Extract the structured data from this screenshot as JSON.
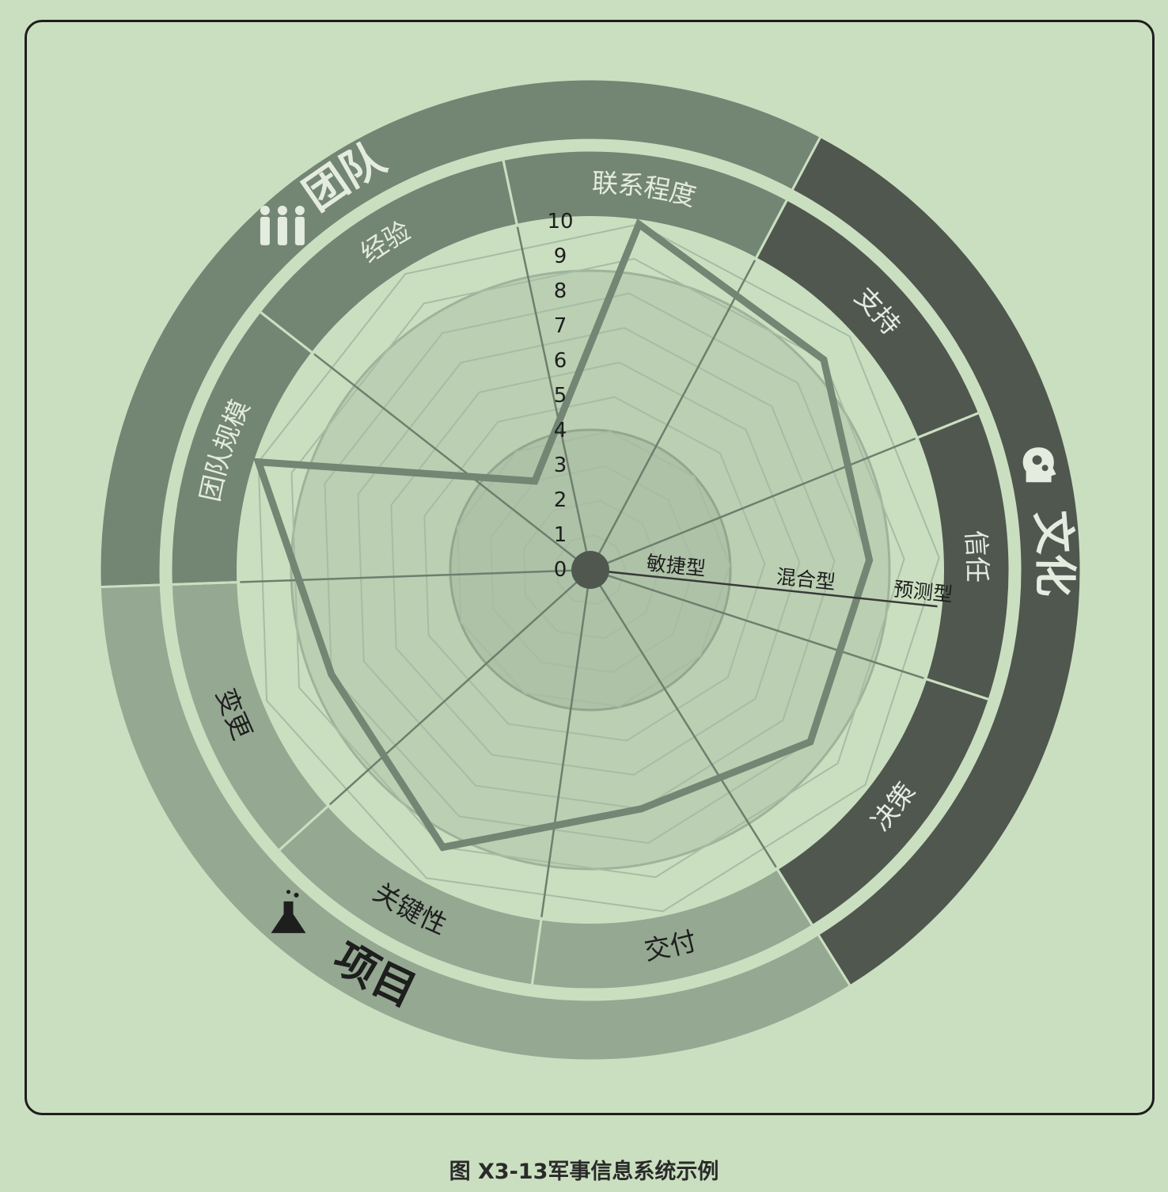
{
  "chart_data": {
    "type": "radar",
    "caption": "图 X3-13军事信息系统示例",
    "scale": {
      "min": 0,
      "max": 10,
      "ticks": [
        "0",
        "1",
        "2",
        "3",
        "4",
        "5",
        "6",
        "7",
        "8",
        "9",
        "10"
      ]
    },
    "zone_labels": [
      "敏捷型",
      "混合型",
      "预测型"
    ],
    "groups": [
      {
        "name": "团队",
        "icon": "team-people-icon",
        "color": "#738573"
      },
      {
        "name": "文化",
        "icon": "head-gears-icon",
        "color": "#4f574f"
      },
      {
        "name": "项目",
        "icon": "flask-icon",
        "color": "#94a892"
      }
    ],
    "axes": [
      {
        "label": "联系程度",
        "group": "团队",
        "value": 10
      },
      {
        "label": "支持",
        "group": "文化",
        "value": 9
      },
      {
        "label": "信任",
        "group": "文化",
        "value": 8
      },
      {
        "label": "决策",
        "group": "文化",
        "value": 8
      },
      {
        "label": "交付",
        "group": "项目",
        "value": 7
      },
      {
        "label": "关键性",
        "group": "项目",
        "value": 9
      },
      {
        "label": "变更",
        "group": "项目",
        "value": 8
      },
      {
        "label": "团队规模",
        "group": "团队",
        "value": 10
      },
      {
        "label": "经验",
        "group": "团队",
        "value": 3
      }
    ],
    "colors": {
      "background": "#cadfc0",
      "data_line": "#738573",
      "axis_line": "#607060"
    }
  }
}
